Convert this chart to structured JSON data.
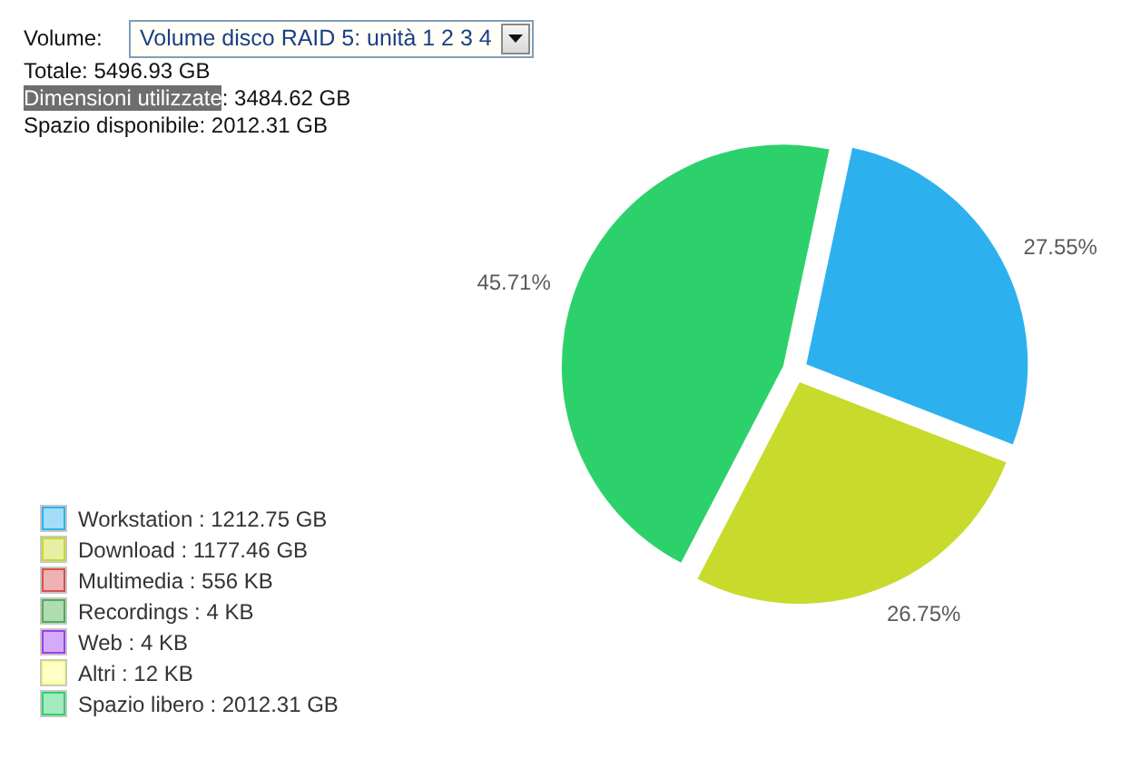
{
  "chart_data": {
    "type": "pie",
    "categories": [
      "Workstation : 1212.75 GB",
      "Download : 1177.46 GB",
      "Multimedia : 556 KB",
      "Recordings : 4 KB",
      "Web : 4 KB",
      "Altri : 12 KB",
      "Spazio libero : 2012.31 GB"
    ],
    "values": [
      27.55,
      26.75,
      0,
      0,
      0,
      0,
      45.71
    ],
    "colors": [
      "#2db1ee",
      "#c8da2b",
      "#d94f4f",
      "#4caf50",
      "#9b40f0",
      "#ffff80",
      "#2dd16c"
    ],
    "value_labels": [
      "27.55%",
      "26.75%",
      null,
      null,
      null,
      null,
      "45.71%"
    ],
    "legend": "bottom left",
    "annotations": [
      "Volume:",
      "Volume disco RAID 5: unità 1 2 3 4",
      "Totale: 5496.93 GB",
      "Dimensioni utilizzate: 3484.62 GB",
      "Spazio disponibile: 2012.31 GB"
    ]
  }
}
